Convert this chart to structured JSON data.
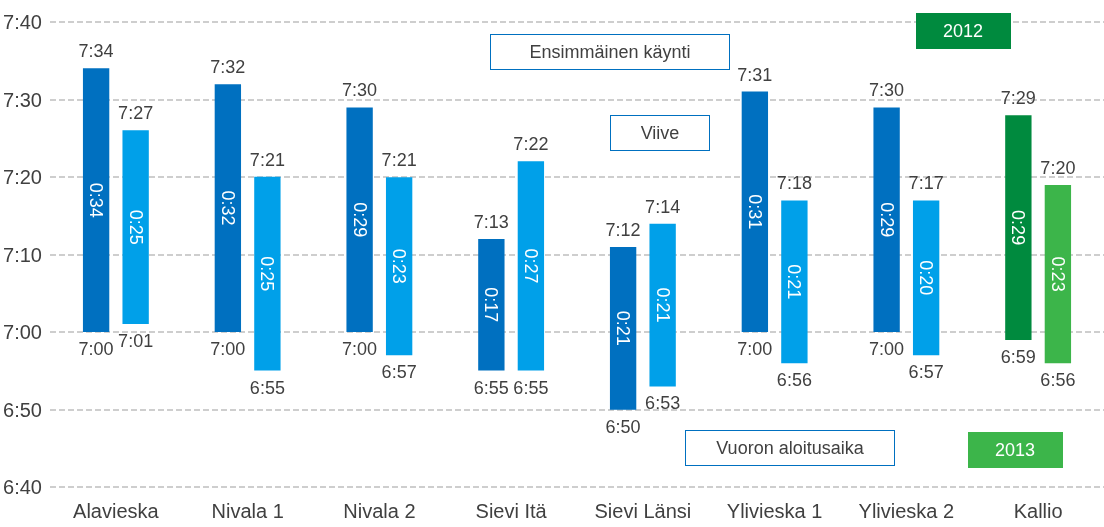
{
  "chart_data": {
    "type": "bar",
    "categories": [
      "Alavieska",
      "Nivala 1",
      "Nivala 2",
      "Sievi Itä",
      "Sievi Länsi",
      "Ylivieska 1",
      "Ylivieska 2",
      "Kallio"
    ],
    "series": [
      {
        "colors": [
          "#0070c0",
          "#0070c0",
          "#0070c0",
          "#0070c0",
          "#0070c0",
          "#0070c0",
          "#0070c0",
          "#008a3e"
        ],
        "base": [
          7,
          7,
          7,
          6.917,
          6.833,
          7,
          7,
          6.983
        ],
        "values": [
          0.567,
          0.533,
          0.483,
          0.283,
          0.35,
          0.517,
          0.483,
          0.483
        ],
        "value_labels": [
          "0:34",
          "0:32",
          "0:29",
          "0:17",
          "0:21",
          "0:31",
          "0:29",
          "0:29"
        ]
      },
      {
        "colors": [
          "#00a0e9",
          "#00a0e9",
          "#00a0e9",
          "#00a0e9",
          "#00a0e9",
          "#00a0e9",
          "#00a0e9",
          "#3cb54a"
        ],
        "base": [
          7.017,
          6.917,
          6.95,
          6.917,
          6.883,
          6.933,
          6.95,
          6.933
        ],
        "values": [
          0.417,
          0.417,
          0.383,
          0.45,
          0.35,
          0.35,
          0.333,
          0.383
        ],
        "value_labels": [
          "0:25",
          "0:25",
          "0:23",
          "0:27",
          "0:21",
          "0:21",
          "0:20",
          "0:23"
        ]
      }
    ],
    "ylim": [
      6.6667,
      7.6667
    ],
    "yticks": [
      {
        "value": 6.6667,
        "label": "6:40"
      },
      {
        "value": 6.8333,
        "label": "6:50"
      },
      {
        "value": 7,
        "label": "7:00"
      },
      {
        "value": 7.1667,
        "label": "7:10"
      },
      {
        "value": 7.3333,
        "label": "7:20"
      },
      {
        "value": 7.5,
        "label": "7:30"
      },
      {
        "value": 7.6667,
        "label": "7:40"
      }
    ],
    "grid": "y",
    "annotations": [
      "Ensimmäinen käynti",
      "Viive",
      "Vuoron aloitusaika",
      "2012",
      "2013",
      "7:34",
      "7:00",
      "7:27",
      "7:01",
      "7:32",
      "7:00",
      "7:21",
      "6:55",
      "7:30",
      "7:00",
      "7:21",
      "6:57",
      "7:13",
      "6:55",
      "7:22",
      "6:55",
      "7:12",
      "6:50",
      "7:14",
      "6:53",
      "7:31",
      "7:00",
      "7:18",
      "6:56",
      "7:30",
      "7:00",
      "7:17",
      "6:57",
      "7:29",
      "6:59",
      "7:20",
      "6:56"
    ]
  }
}
